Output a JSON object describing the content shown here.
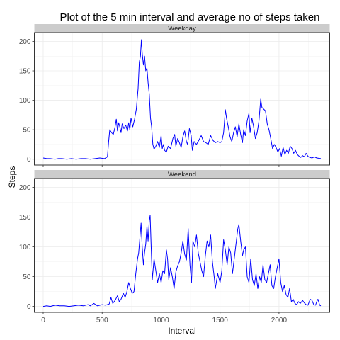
{
  "chart_data": {
    "type": "line",
    "title": "Plot of the 5 min interval and average no of steps taken",
    "xlabel": "Interval",
    "ylabel": "Steps",
    "xlim": [
      -75,
      2430
    ],
    "ylim": [
      -10,
      215
    ],
    "x_ticks": [
      0,
      500,
      1000,
      1500,
      2000
    ],
    "x_tick_labels": [
      "0",
      "500",
      "1000",
      "1500",
      "2000"
    ],
    "y_ticks": [
      0,
      50,
      100,
      150,
      200
    ],
    "y_tick_labels": [
      "0",
      "50",
      "100",
      "150",
      "200"
    ],
    "grid": true,
    "legend": "none",
    "line_color": "#0000ff",
    "strip_color": "#cccccc",
    "facets": [
      {
        "label": "Weekday",
        "points": [
          [
            0,
            2
          ],
          [
            30,
            1
          ],
          [
            60,
            1
          ],
          [
            100,
            0
          ],
          [
            130,
            1
          ],
          [
            160,
            1
          ],
          [
            200,
            0
          ],
          [
            240,
            1
          ],
          [
            280,
            0
          ],
          [
            320,
            1
          ],
          [
            360,
            1
          ],
          [
            400,
            0
          ],
          [
            440,
            1
          ],
          [
            480,
            2
          ],
          [
            520,
            1
          ],
          [
            545,
            4
          ],
          [
            555,
            30
          ],
          [
            565,
            50
          ],
          [
            580,
            45
          ],
          [
            595,
            42
          ],
          [
            610,
            55
          ],
          [
            620,
            68
          ],
          [
            630,
            48
          ],
          [
            640,
            62
          ],
          [
            650,
            55
          ],
          [
            660,
            45
          ],
          [
            670,
            60
          ],
          [
            685,
            52
          ],
          [
            700,
            58
          ],
          [
            715,
            48
          ],
          [
            725,
            62
          ],
          [
            735,
            50
          ],
          [
            745,
            70
          ],
          [
            760,
            55
          ],
          [
            775,
            68
          ],
          [
            790,
            85
          ],
          [
            805,
            120
          ],
          [
            815,
            165
          ],
          [
            825,
            175
          ],
          [
            833,
            203
          ],
          [
            840,
            180
          ],
          [
            850,
            160
          ],
          [
            860,
            175
          ],
          [
            870,
            150
          ],
          [
            880,
            155
          ],
          [
            890,
            130
          ],
          [
            900,
            110
          ],
          [
            910,
            70
          ],
          [
            920,
            55
          ],
          [
            930,
            25
          ],
          [
            940,
            17
          ],
          [
            955,
            22
          ],
          [
            970,
            30
          ],
          [
            985,
            20
          ],
          [
            1000,
            40
          ],
          [
            1010,
            18
          ],
          [
            1020,
            25
          ],
          [
            1030,
            15
          ],
          [
            1045,
            12
          ],
          [
            1060,
            22
          ],
          [
            1080,
            18
          ],
          [
            1100,
            35
          ],
          [
            1115,
            42
          ],
          [
            1125,
            22
          ],
          [
            1140,
            35
          ],
          [
            1155,
            28
          ],
          [
            1170,
            20
          ],
          [
            1185,
            38
          ],
          [
            1200,
            48
          ],
          [
            1215,
            30
          ],
          [
            1225,
            25
          ],
          [
            1240,
            52
          ],
          [
            1255,
            40
          ],
          [
            1265,
            15
          ],
          [
            1280,
            30
          ],
          [
            1300,
            25
          ],
          [
            1320,
            32
          ],
          [
            1340,
            40
          ],
          [
            1360,
            30
          ],
          [
            1380,
            28
          ],
          [
            1400,
            25
          ],
          [
            1420,
            40
          ],
          [
            1440,
            32
          ],
          [
            1460,
            28
          ],
          [
            1480,
            30
          ],
          [
            1500,
            28
          ],
          [
            1515,
            30
          ],
          [
            1530,
            45
          ],
          [
            1545,
            84
          ],
          [
            1555,
            70
          ],
          [
            1570,
            55
          ],
          [
            1585,
            38
          ],
          [
            1600,
            30
          ],
          [
            1615,
            45
          ],
          [
            1630,
            55
          ],
          [
            1645,
            38
          ],
          [
            1660,
            60
          ],
          [
            1675,
            42
          ],
          [
            1690,
            28
          ],
          [
            1700,
            50
          ],
          [
            1715,
            40
          ],
          [
            1730,
            65
          ],
          [
            1745,
            78
          ],
          [
            1755,
            45
          ],
          [
            1770,
            70
          ],
          [
            1785,
            55
          ],
          [
            1800,
            35
          ],
          [
            1815,
            45
          ],
          [
            1830,
            65
          ],
          [
            1845,
            102
          ],
          [
            1855,
            88
          ],
          [
            1870,
            85
          ],
          [
            1885,
            82
          ],
          [
            1900,
            60
          ],
          [
            1915,
            50
          ],
          [
            1930,
            35
          ],
          [
            1945,
            18
          ],
          [
            1960,
            25
          ],
          [
            1975,
            20
          ],
          [
            1990,
            12
          ],
          [
            2005,
            18
          ],
          [
            2020,
            5
          ],
          [
            2035,
            20
          ],
          [
            2050,
            8
          ],
          [
            2065,
            15
          ],
          [
            2080,
            10
          ],
          [
            2095,
            22
          ],
          [
            2110,
            18
          ],
          [
            2125,
            10
          ],
          [
            2140,
            15
          ],
          [
            2155,
            8
          ],
          [
            2170,
            5
          ],
          [
            2185,
            3
          ],
          [
            2200,
            6
          ],
          [
            2215,
            4
          ],
          [
            2230,
            10
          ],
          [
            2245,
            5
          ],
          [
            2260,
            3
          ],
          [
            2280,
            2
          ],
          [
            2300,
            4
          ],
          [
            2320,
            2
          ],
          [
            2355,
            1
          ]
        ]
      },
      {
        "label": "Weekend",
        "points": [
          [
            0,
            0
          ],
          [
            30,
            1
          ],
          [
            60,
            0
          ],
          [
            100,
            2
          ],
          [
            140,
            1
          ],
          [
            180,
            1
          ],
          [
            220,
            0
          ],
          [
            260,
            1
          ],
          [
            300,
            2
          ],
          [
            340,
            1
          ],
          [
            380,
            3
          ],
          [
            400,
            1
          ],
          [
            430,
            5
          ],
          [
            460,
            1
          ],
          [
            500,
            3
          ],
          [
            530,
            2
          ],
          [
            560,
            4
          ],
          [
            575,
            15
          ],
          [
            590,
            5
          ],
          [
            610,
            10
          ],
          [
            630,
            18
          ],
          [
            645,
            8
          ],
          [
            660,
            12
          ],
          [
            680,
            22
          ],
          [
            695,
            15
          ],
          [
            710,
            25
          ],
          [
            725,
            40
          ],
          [
            740,
            30
          ],
          [
            755,
            22
          ],
          [
            770,
            25
          ],
          [
            785,
            55
          ],
          [
            800,
            80
          ],
          [
            810,
            90
          ],
          [
            820,
            115
          ],
          [
            830,
            140
          ],
          [
            840,
            100
          ],
          [
            850,
            70
          ],
          [
            860,
            90
          ],
          [
            870,
            105
          ],
          [
            880,
            135
          ],
          [
            890,
            110
          ],
          [
            900,
            145
          ],
          [
            907,
            153
          ],
          [
            915,
            105
          ],
          [
            925,
            45
          ],
          [
            940,
            80
          ],
          [
            955,
            60
          ],
          [
            970,
            40
          ],
          [
            985,
            55
          ],
          [
            1000,
            40
          ],
          [
            1015,
            60
          ],
          [
            1030,
            55
          ],
          [
            1045,
            95
          ],
          [
            1055,
            80
          ],
          [
            1065,
            45
          ],
          [
            1080,
            65
          ],
          [
            1095,
            50
          ],
          [
            1110,
            30
          ],
          [
            1125,
            58
          ],
          [
            1140,
            68
          ],
          [
            1155,
            75
          ],
          [
            1170,
            90
          ],
          [
            1185,
            110
          ],
          [
            1200,
            88
          ],
          [
            1215,
            78
          ],
          [
            1230,
            131
          ],
          [
            1245,
            70
          ],
          [
            1258,
            40
          ],
          [
            1270,
            110
          ],
          [
            1285,
            100
          ],
          [
            1300,
            120
          ],
          [
            1315,
            90
          ],
          [
            1330,
            75
          ],
          [
            1345,
            60
          ],
          [
            1360,
            50
          ],
          [
            1375,
            85
          ],
          [
            1390,
            110
          ],
          [
            1405,
            100
          ],
          [
            1420,
            120
          ],
          [
            1435,
            75
          ],
          [
            1450,
            50
          ],
          [
            1460,
            30
          ],
          [
            1480,
            55
          ],
          [
            1500,
            40
          ],
          [
            1515,
            60
          ],
          [
            1530,
            112
          ],
          [
            1545,
            95
          ],
          [
            1560,
            70
          ],
          [
            1575,
            100
          ],
          [
            1590,
            90
          ],
          [
            1605,
            55
          ],
          [
            1620,
            80
          ],
          [
            1635,
            105
          ],
          [
            1650,
            130
          ],
          [
            1660,
            138
          ],
          [
            1675,
            110
          ],
          [
            1690,
            85
          ],
          [
            1700,
            95
          ],
          [
            1715,
            100
          ],
          [
            1730,
            50
          ],
          [
            1745,
            40
          ],
          [
            1760,
            80
          ],
          [
            1775,
            45
          ],
          [
            1790,
            35
          ],
          [
            1805,
            55
          ],
          [
            1820,
            30
          ],
          [
            1835,
            50
          ],
          [
            1850,
            40
          ],
          [
            1865,
            70
          ],
          [
            1880,
            45
          ],
          [
            1895,
            40
          ],
          [
            1910,
            55
          ],
          [
            1925,
            70
          ],
          [
            1940,
            35
          ],
          [
            1955,
            30
          ],
          [
            1970,
            50
          ],
          [
            1985,
            65
          ],
          [
            2000,
            80
          ],
          [
            2015,
            40
          ],
          [
            2030,
            25
          ],
          [
            2045,
            35
          ],
          [
            2060,
            20
          ],
          [
            2075,
            15
          ],
          [
            2090,
            30
          ],
          [
            2105,
            8
          ],
          [
            2120,
            12
          ],
          [
            2135,
            5
          ],
          [
            2150,
            3
          ],
          [
            2165,
            8
          ],
          [
            2180,
            5
          ],
          [
            2200,
            10
          ],
          [
            2215,
            6
          ],
          [
            2230,
            3
          ],
          [
            2245,
            2
          ],
          [
            2265,
            12
          ],
          [
            2280,
            10
          ],
          [
            2295,
            3
          ],
          [
            2310,
            2
          ],
          [
            2320,
            8
          ],
          [
            2330,
            12
          ],
          [
            2345,
            2
          ],
          [
            2355,
            1
          ]
        ]
      }
    ]
  }
}
